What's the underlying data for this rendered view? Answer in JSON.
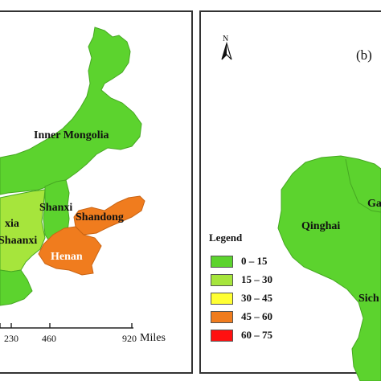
{
  "map": {
    "left_panel": {
      "regions": [
        {
          "name": "Inner Mongolia",
          "class": "0 – 15"
        },
        {
          "name": "Shanxi",
          "class": "0 – 15"
        },
        {
          "name": "Shandong",
          "class": "45 – 60"
        },
        {
          "name": "Henan",
          "class": "45 – 60"
        },
        {
          "name": "Shaanxi",
          "class": "15 – 30"
        },
        {
          "name": "xia",
          "class": "15 – 30"
        }
      ],
      "scale_bar": {
        "ticks": [
          "230",
          "460",
          "920"
        ],
        "unit": "Miles"
      }
    },
    "right_panel": {
      "tag": "(b)",
      "north_letter": "N",
      "regions": [
        {
          "name": "Qinghai",
          "class": "0 – 15"
        },
        {
          "name": "Ga",
          "class": "0 – 15"
        },
        {
          "name": "Sich",
          "class": "0 – 15"
        }
      ]
    },
    "legend": {
      "title": "Legend",
      "items": [
        {
          "label": "0 – 15",
          "color": "#5cd32e"
        },
        {
          "label": "15 – 30",
          "color": "#a6e53c"
        },
        {
          "label": "30 – 45",
          "color": "#ffff33"
        },
        {
          "label": "45 – 60",
          "color": "#f07c1e"
        },
        {
          "label": "60 – 75",
          "color": "#ff1010"
        }
      ]
    }
  }
}
